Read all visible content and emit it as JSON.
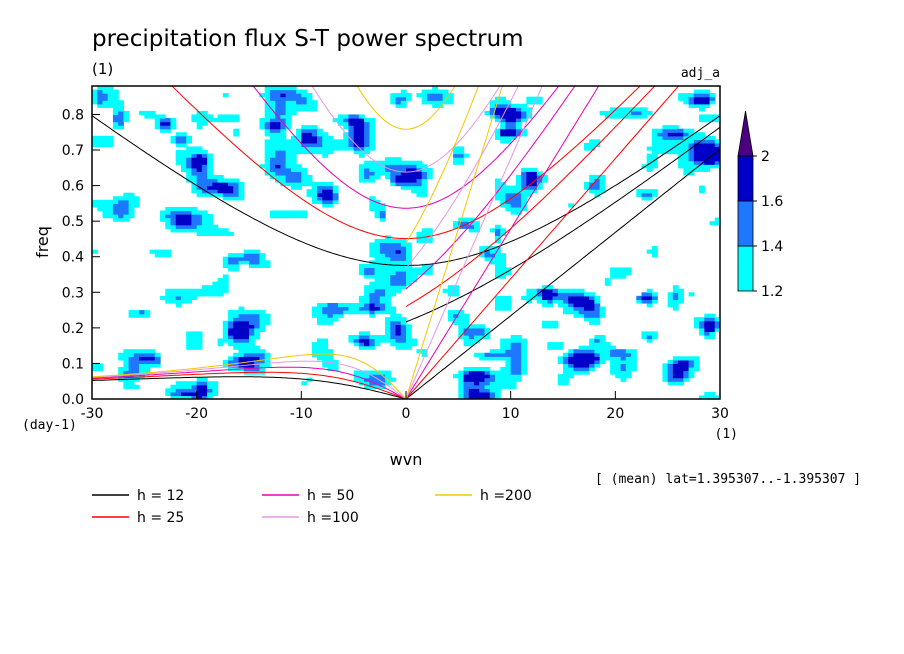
{
  "chart_data": {
    "type": "heatmap",
    "title": "precipitation flux S-T power spectrum",
    "subtitle_left": "(1)",
    "subtitle_right": "adj_a",
    "xlabel": "wvn",
    "xunit": "(1)",
    "ylabel": "freq",
    "yunit": "(day-1)",
    "xlim": [
      -30,
      30
    ],
    "ylim": [
      0,
      0.88
    ],
    "xticks": [
      "-30",
      "-20",
      "-10",
      "0",
      "10",
      "20",
      "30"
    ],
    "yticks": [
      "0.0",
      "0.1",
      "0.2",
      "0.3",
      "0.4",
      "0.5",
      "0.6",
      "0.7",
      "0.8"
    ],
    "colorbar": {
      "levels": [
        "1.2",
        "1.4",
        "1.6",
        "2"
      ],
      "colors": [
        "#00ffff",
        "#1e78ff",
        "#0000c8",
        "#4b0082"
      ]
    },
    "annotation": "[ (mean) lat=1.395307..-1.395307 ]",
    "dispersion_curves": [
      {
        "name": "h = 12",
        "h": 12,
        "color": "#000000"
      },
      {
        "name": "h = 25",
        "h": 25,
        "color": "#ff0000"
      },
      {
        "name": "h = 50",
        "h": 50,
        "color": "#e600b4"
      },
      {
        "name": "h =100",
        "h": 100,
        "color": "#e696e6"
      },
      {
        "name": "h =200",
        "h": 200,
        "color": "#f0c800"
      }
    ]
  }
}
